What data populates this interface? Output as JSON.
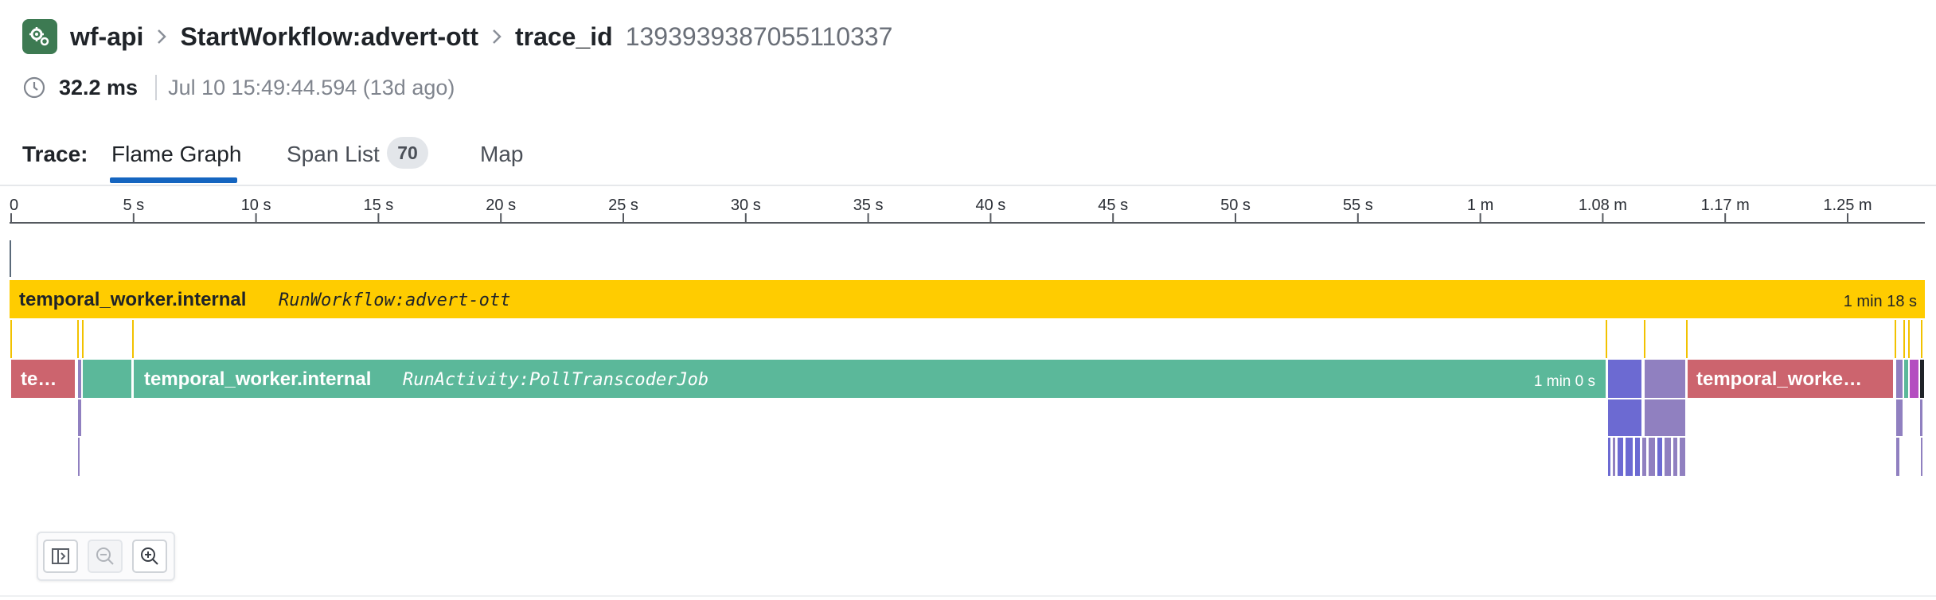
{
  "header": {
    "service": "wf-api",
    "service_icon": "gears-icon",
    "operation": "StartWorkflow:advert-ott",
    "trace_id_label": "trace_id",
    "trace_id": "1393939387055110337"
  },
  "meta": {
    "duration": "32.2 ms",
    "timestamp": "Jul 10 15:49:44.594 (13d ago)"
  },
  "tabs": {
    "label": "Trace:",
    "items": [
      {
        "label": "Flame Graph",
        "active": true
      },
      {
        "label": "Span List",
        "badge": "70"
      },
      {
        "label": "Map"
      }
    ]
  },
  "flame_graph": {
    "axis_ticks": [
      "0",
      "5 s",
      "10 s",
      "15 s",
      "20 s",
      "25 s",
      "30 s",
      "35 s",
      "40 s",
      "45 s",
      "50 s",
      "55 s",
      "1 m",
      "1.08 m",
      "1.17 m",
      "1.25 m"
    ],
    "root_span": {
      "service": "temporal_worker.internal",
      "resource": "RunWorkflow:advert-ott",
      "duration": "1 min 18 s"
    },
    "child_spans": [
      {
        "label": "te…"
      },
      {
        "service": "temporal_worker.internal",
        "resource": "RunActivity:PollTranscoderJob",
        "duration": "1 min 0 s"
      },
      {
        "label": "temporal_worke…"
      }
    ]
  },
  "colors": {
    "root_span": "#ffcc00",
    "activity_span": "#5bb89a",
    "red_span": "#cc646e",
    "purple_span": "#9080c0",
    "blue_span": "#6c6ad2",
    "active_tab_underline": "#1565c0"
  },
  "toolbar": {
    "buttons": [
      "toggle-panel-icon",
      "zoom-out-icon",
      "zoom-in-icon"
    ]
  }
}
